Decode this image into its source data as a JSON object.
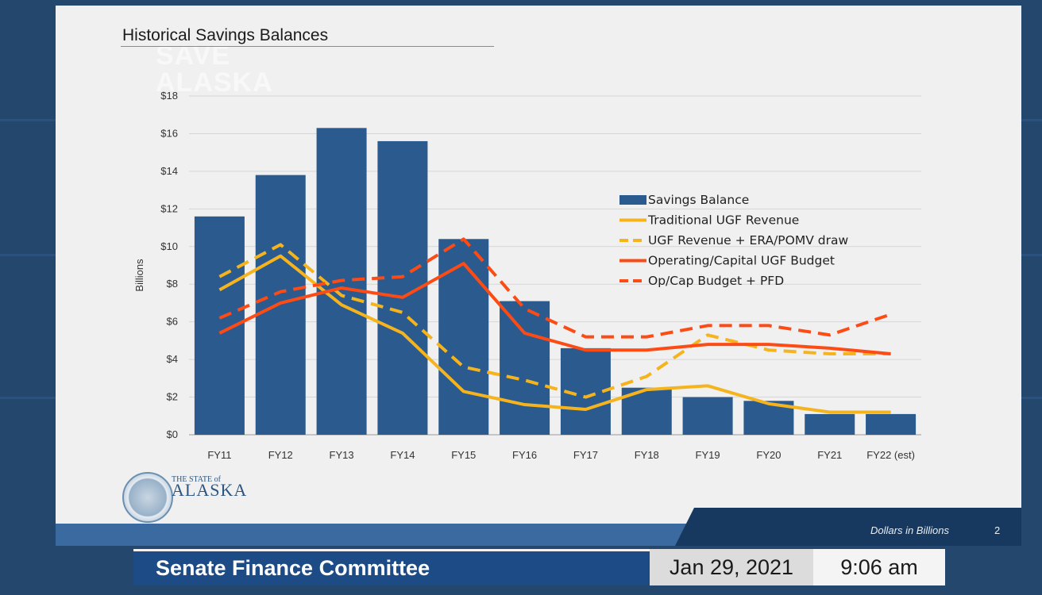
{
  "slide": {
    "title": "Historical Savings Balances",
    "watermark_lines": [
      "SAVE",
      "ALASKA"
    ],
    "footer_note": "Dollars in Billions",
    "page_number": "2",
    "logo_text_small": "THE STATE of",
    "logo_text_large": "ALASKA"
  },
  "broadcast": {
    "committee": "Senate Finance Committee",
    "date": "Jan 29, 2021",
    "time": "9:06 am"
  },
  "colors": {
    "bars": "#2a5a8e",
    "traditional_ugf": "#f5b41e",
    "ugf_era": "#f5b41e",
    "opcap": "#fd4b16",
    "opcap_pfd": "#fd4b16"
  },
  "chart_data": {
    "type": "bar",
    "ylabel": "Billions",
    "ylim": [
      0,
      18
    ],
    "yticks": [
      0,
      2,
      4,
      6,
      8,
      10,
      12,
      14,
      16,
      18
    ],
    "ytick_labels": [
      "$0",
      "$2",
      "$4",
      "$6",
      "$8",
      "$10",
      "$12",
      "$14",
      "$16",
      "$18"
    ],
    "categories": [
      "FY11",
      "FY12",
      "FY13",
      "FY14",
      "FY15",
      "FY16",
      "FY17",
      "FY18",
      "FY19",
      "FY20",
      "FY21",
      "FY22 (est)"
    ],
    "grid": true,
    "legend_position": "right-center",
    "series": [
      {
        "name": "Savings Balance",
        "kind": "bar",
        "values": [
          11.6,
          13.8,
          16.3,
          15.6,
          10.4,
          7.1,
          4.6,
          2.5,
          2.0,
          1.8,
          1.1,
          1.1
        ]
      },
      {
        "name": "Traditional UGF Revenue",
        "kind": "line",
        "style": "solid",
        "values": [
          7.7,
          9.5,
          6.9,
          5.4,
          2.3,
          1.6,
          1.35,
          2.4,
          2.6,
          1.65,
          1.2,
          1.2
        ]
      },
      {
        "name": "UGF Revenue + ERA/POMV draw",
        "kind": "line",
        "style": "dashed",
        "values": [
          8.4,
          10.1,
          7.4,
          6.5,
          3.6,
          2.9,
          2.0,
          3.1,
          5.3,
          4.5,
          4.3,
          4.3
        ]
      },
      {
        "name": "Operating/Capital UGF Budget",
        "kind": "line",
        "style": "solid",
        "values": [
          5.4,
          7.0,
          7.8,
          7.3,
          9.1,
          5.4,
          4.5,
          4.5,
          4.8,
          4.8,
          4.6,
          4.3
        ]
      },
      {
        "name": "Op/Cap Budget + PFD",
        "kind": "line",
        "style": "dashed",
        "values": [
          6.2,
          7.6,
          8.2,
          8.4,
          10.4,
          6.7,
          5.2,
          5.2,
          5.8,
          5.8,
          5.3,
          6.4
        ]
      }
    ]
  }
}
